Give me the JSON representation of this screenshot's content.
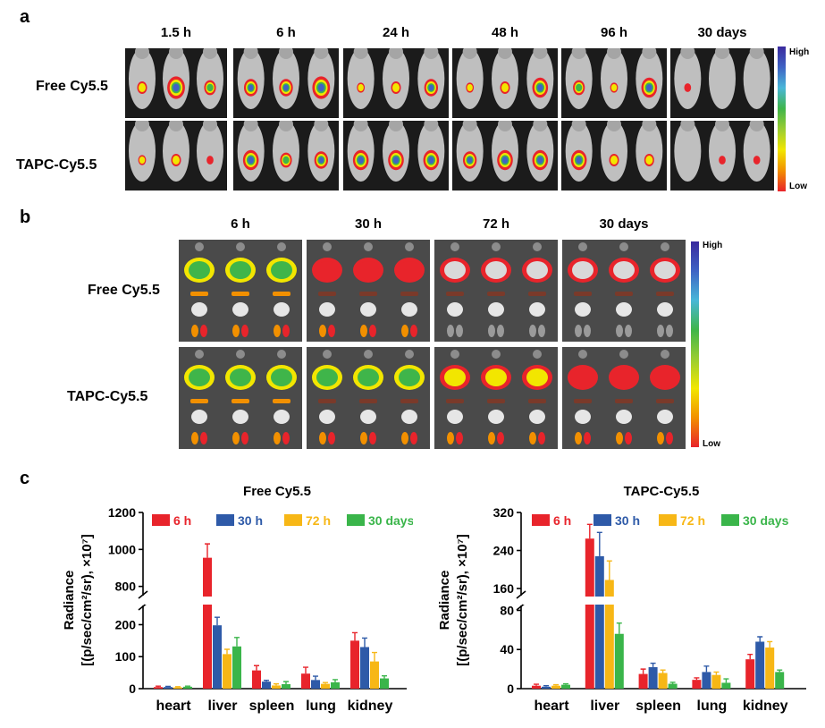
{
  "panel_a": {
    "letter": "a",
    "timepoints": [
      "1.5 h",
      "6 h",
      "24 h",
      "48 h",
      "96 h",
      "30 days"
    ],
    "groups": [
      "Free Cy5.5",
      "TAPC-Cy5.5"
    ],
    "scale": {
      "high": "High",
      "low": "Low"
    }
  },
  "panel_b": {
    "letter": "b",
    "timepoints": [
      "6 h",
      "30 h",
      "72 h",
      "30 days"
    ],
    "groups": [
      "Free Cy5.5",
      "TAPC-Cy5.5"
    ],
    "scale": {
      "high": "High",
      "low": "Low"
    }
  },
  "panel_c": {
    "letter": "c"
  },
  "colors": {
    "6 h": "#e8242b",
    "30 h": "#2e5aa8",
    "72 h": "#f7b716",
    "30 days": "#3ab54a"
  },
  "chart_data": [
    {
      "type": "bar",
      "title": "Free Cy5.5",
      "ylabel_line1": "Radiance",
      "ylabel_line2": "[(p/sec/cm²/sr), ×10⁷]",
      "categories": [
        "heart",
        "liver",
        "spleen",
        "lung",
        "kidney"
      ],
      "series": [
        {
          "name": "6 h",
          "values": [
            5,
            955,
            57,
            47,
            150
          ],
          "errors": [
            3,
            75,
            15,
            20,
            25
          ]
        },
        {
          "name": "30 h",
          "values": [
            5,
            198,
            22,
            27,
            130
          ],
          "errors": [
            2,
            25,
            4,
            12,
            28
          ]
        },
        {
          "name": "72 h",
          "values": [
            4,
            108,
            10,
            15,
            85
          ],
          "errors": [
            2,
            15,
            5,
            4,
            28
          ]
        },
        {
          "name": "30 days",
          "values": [
            6,
            132,
            14,
            20,
            32
          ],
          "errors": [
            2,
            28,
            8,
            8,
            8
          ]
        }
      ],
      "axis_break": {
        "lower": [
          0,
          260
        ],
        "upper": [
          750,
          1200
        ]
      },
      "yticks_lower": [
        "0",
        "100",
        "200"
      ],
      "yticks_upper": [
        "800",
        "1000",
        "1200"
      ],
      "ytick_values_lower": [
        0,
        100,
        200
      ],
      "ytick_values_upper": [
        800,
        1000,
        1200
      ]
    },
    {
      "type": "bar",
      "title": "TAPC-Cy5.5",
      "ylabel_line1": "Radiance",
      "ylabel_line2": "[(p/sec/cm²/sr), ×10⁷]",
      "categories": [
        "heart",
        "liver",
        "spleen",
        "lung",
        "kidney"
      ],
      "series": [
        {
          "name": "6 h",
          "values": [
            3,
            265,
            15,
            9,
            30
          ],
          "errors": [
            1.5,
            30,
            5,
            2,
            5
          ]
        },
        {
          "name": "30 h",
          "values": [
            2,
            228,
            22,
            17,
            48
          ],
          "errors": [
            1,
            50,
            4,
            6,
            5
          ]
        },
        {
          "name": "72 h",
          "values": [
            3,
            178,
            16,
            14,
            42
          ],
          "errors": [
            1,
            40,
            3,
            3,
            6
          ]
        },
        {
          "name": "30 days",
          "values": [
            4,
            56,
            5,
            6,
            17
          ],
          "errors": [
            1,
            11,
            1.5,
            4,
            2
          ]
        }
      ],
      "axis_break": {
        "lower": [
          0,
          85
        ],
        "upper": [
          145,
          320
        ]
      },
      "yticks_lower": [
        "0",
        "40",
        "80"
      ],
      "yticks_upper": [
        "160",
        "240",
        "320"
      ],
      "ytick_values_lower": [
        0,
        40,
        80
      ],
      "ytick_values_upper": [
        160,
        240,
        320
      ]
    }
  ]
}
